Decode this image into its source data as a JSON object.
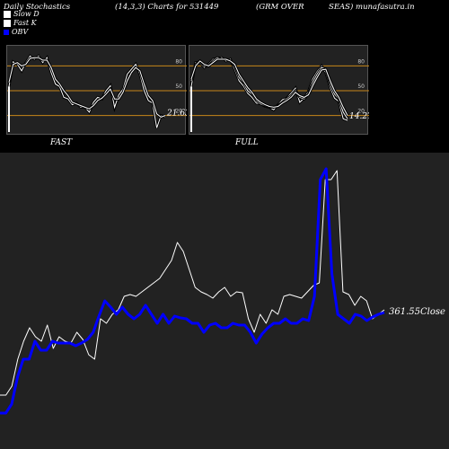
{
  "header": {
    "title": "Daily Stochastics",
    "params": "(14,3,3) Charts for 531449",
    "company": "(GRM OVER",
    "site": "SEAS) munafasutra.in"
  },
  "legend": [
    {
      "label": "Slow  D",
      "color": "#ffffff",
      "style": "box"
    },
    {
      "label": "Fast K",
      "color": "#ffffff",
      "style": "box"
    },
    {
      "label": "OBV",
      "color": "#0000ff",
      "style": "fill"
    }
  ],
  "colors": {
    "panel_bg": "#222222",
    "level_line": "#c8871a",
    "blue": "#0000ff",
    "white": "#ffffff"
  },
  "chart_data": [
    {
      "type": "line",
      "name": "FAST",
      "label": "FAST",
      "levels": [
        80,
        50,
        20
      ],
      "level_labels": [
        "80",
        "50",
        "20"
      ],
      "ylim": [
        0,
        100
      ],
      "last_value_label": "21.63",
      "series": [
        {
          "values": [
            55,
            85,
            82,
            74,
            84,
            92,
            88,
            92,
            84,
            90,
            72,
            58,
            55,
            42,
            40,
            33,
            35,
            30,
            30,
            24,
            36,
            42,
            40,
            50,
            56,
            30,
            45,
            52,
            70,
            76,
            82,
            70,
            50,
            38,
            35,
            5,
            20,
            18
          ]
        },
        {
          "values": [
            60,
            82,
            84,
            80,
            82,
            89,
            90,
            90,
            87,
            87,
            78,
            64,
            58,
            50,
            44,
            36,
            34,
            32,
            30,
            28,
            32,
            38,
            41,
            46,
            52,
            40,
            40,
            48,
            62,
            72,
            78,
            74,
            58,
            44,
            38,
            22,
            18,
            20
          ]
        }
      ]
    },
    {
      "type": "line",
      "name": "FULL",
      "label": "FULL",
      "levels": [
        80,
        50,
        20
      ],
      "level_labels": [
        "80",
        "50",
        "20"
      ],
      "ylim": [
        0,
        100
      ],
      "last_value_label": "14.27",
      "series": [
        {
          "values": [
            55,
            84,
            84,
            78,
            82,
            88,
            89,
            90,
            86,
            88,
            76,
            62,
            56,
            47,
            42,
            35,
            34,
            31,
            30,
            27,
            33,
            39,
            41,
            47,
            53,
            36,
            41,
            49,
            64,
            73,
            80,
            72,
            54,
            41,
            37,
            16,
            14
          ]
        },
        {
          "values": [
            62,
            82,
            86,
            80,
            80,
            86,
            90,
            88,
            88,
            86,
            80,
            66,
            60,
            50,
            46,
            38,
            34,
            32,
            30,
            30,
            32,
            36,
            40,
            44,
            50,
            42,
            40,
            46,
            60,
            70,
            78,
            76,
            58,
            46,
            40,
            24,
            16
          ]
        },
        {
          "values": [
            64,
            80,
            86,
            82,
            80,
            84,
            88,
            88,
            88,
            86,
            82,
            70,
            62,
            54,
            48,
            40,
            36,
            33,
            31,
            30,
            31,
            35,
            38,
            42,
            48,
            44,
            42,
            45,
            56,
            66,
            75,
            76,
            62,
            50,
            42,
            30,
            20
          ]
        }
      ]
    },
    {
      "type": "line",
      "name": "OBV",
      "last_value_label": "361.55",
      "close_label": "Close",
      "price_line": [
        60,
        60,
        70,
        100,
        120,
        135,
        125,
        120,
        138,
        112,
        125,
        120,
        118,
        130,
        122,
        105,
        100,
        145,
        140,
        150,
        155,
        170,
        172,
        170,
        175,
        180,
        185,
        190,
        200,
        210,
        230,
        220,
        200,
        180,
        175,
        172,
        168,
        175,
        180,
        170,
        175,
        174,
        145,
        130,
        150,
        140,
        155,
        150,
        170,
        172,
        170,
        168,
        175,
        182,
        185,
        300,
        300,
        310,
        175,
        172,
        160,
        170,
        165,
        145,
        150,
        155
      ],
      "obv_line": [
        40,
        40,
        50,
        80,
        100,
        100,
        120,
        110,
        110,
        120,
        118,
        118,
        118,
        115,
        118,
        122,
        130,
        148,
        165,
        158,
        150,
        158,
        150,
        145,
        150,
        160,
        150,
        140,
        150,
        140,
        148,
        146,
        145,
        140,
        140,
        130,
        138,
        140,
        135,
        135,
        140,
        138,
        138,
        130,
        118,
        128,
        135,
        140,
        140,
        145,
        140,
        140,
        145,
        143,
        170,
        300,
        312,
        195,
        150,
        145,
        140,
        150,
        148,
        143,
        147,
        150,
        152
      ]
    }
  ],
  "panel_labels": {
    "fast": "FAST",
    "full": "FULL"
  }
}
